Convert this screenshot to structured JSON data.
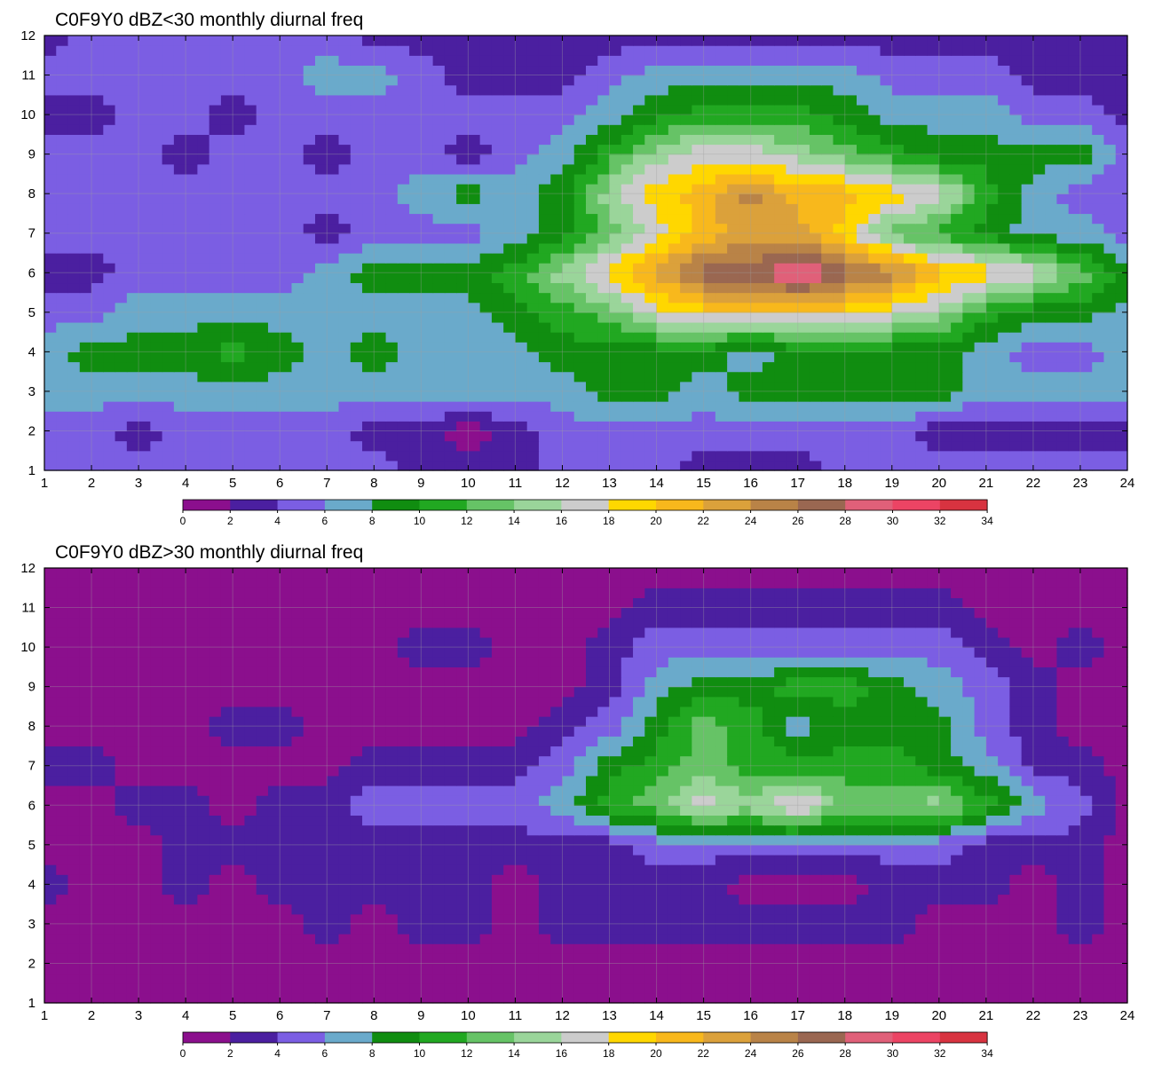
{
  "chart_data": [
    {
      "type": "heatmap",
      "title": "C0F9Y0 dBZ<30 monthly diurnal freq",
      "xlabel": "",
      "ylabel": "",
      "xlim": [
        1,
        24
      ],
      "ylim": [
        1,
        12
      ],
      "x_ticks": [
        1,
        2,
        3,
        4,
        5,
        6,
        7,
        8,
        9,
        10,
        11,
        12,
        13,
        14,
        15,
        16,
        17,
        18,
        19,
        20,
        21,
        22,
        23,
        24
      ],
      "y_ticks": [
        1,
        2,
        3,
        4,
        5,
        6,
        7,
        8,
        9,
        10,
        11,
        12
      ],
      "grid": true,
      "contour_levels": [
        0,
        2,
        4,
        6,
        8,
        10,
        12,
        14,
        16,
        18,
        20,
        22,
        24,
        26,
        28,
        30,
        32,
        34
      ],
      "x": [
        1,
        2,
        3,
        4,
        5,
        6,
        7,
        8,
        9,
        10,
        11,
        12,
        13,
        14,
        15,
        16,
        17,
        18,
        19,
        20,
        21,
        22,
        23,
        24
      ],
      "y": [
        1,
        2,
        3,
        4,
        5,
        6,
        7,
        8,
        9,
        10,
        11,
        12
      ],
      "z": [
        [
          5,
          5,
          5,
          5,
          5,
          5,
          5,
          5,
          3,
          3,
          3,
          5,
          5,
          5,
          3,
          3,
          3,
          5,
          5,
          5,
          5,
          5,
          5,
          5
        ],
        [
          5,
          5,
          3,
          5,
          5,
          5,
          5,
          3,
          3,
          1,
          3,
          5,
          5,
          5,
          5,
          5,
          5,
          5,
          5,
          3,
          3,
          3,
          3,
          3
        ],
        [
          7,
          7,
          7,
          7,
          7,
          7,
          7,
          7,
          7,
          7,
          7,
          7,
          9,
          9,
          7,
          9,
          9,
          9,
          9,
          9,
          7,
          7,
          7,
          7
        ],
        [
          7,
          9,
          9,
          9,
          11,
          9,
          7,
          9,
          7,
          7,
          7,
          9,
          9,
          9,
          9,
          7,
          9,
          9,
          9,
          9,
          7,
          5,
          5,
          7
        ],
        [
          5,
          5,
          7,
          7,
          7,
          7,
          7,
          7,
          7,
          7,
          9,
          11,
          13,
          17,
          19,
          19,
          19,
          19,
          17,
          15,
          11,
          9,
          9,
          7
        ],
        [
          3,
          3,
          5,
          5,
          5,
          5,
          7,
          9,
          9,
          9,
          11,
          15,
          19,
          23,
          27,
          27,
          31,
          27,
          25,
          21,
          19,
          17,
          13,
          9
        ],
        [
          5,
          5,
          5,
          5,
          5,
          5,
          3,
          5,
          5,
          5,
          7,
          9,
          13,
          17,
          21,
          23,
          23,
          19,
          13,
          11,
          9,
          7,
          7,
          5
        ],
        [
          5,
          5,
          5,
          5,
          5,
          5,
          5,
          5,
          7,
          9,
          7,
          9,
          15,
          19,
          21,
          25,
          21,
          21,
          19,
          17,
          11,
          7,
          5,
          5
        ],
        [
          5,
          5,
          5,
          3,
          5,
          5,
          3,
          5,
          5,
          3,
          5,
          7,
          11,
          15,
          17,
          17,
          15,
          13,
          11,
          9,
          9,
          9,
          9,
          5
        ],
        [
          3,
          3,
          5,
          5,
          3,
          5,
          5,
          5,
          5,
          5,
          5,
          5,
          7,
          9,
          11,
          11,
          11,
          9,
          7,
          7,
          7,
          5,
          5,
          3
        ],
        [
          5,
          5,
          5,
          5,
          5,
          5,
          7,
          7,
          5,
          3,
          3,
          3,
          5,
          7,
          7,
          7,
          7,
          7,
          5,
          5,
          5,
          3,
          3,
          3
        ],
        [
          3,
          5,
          5,
          5,
          5,
          5,
          5,
          3,
          3,
          3,
          3,
          3,
          3,
          3,
          3,
          3,
          3,
          3,
          3,
          3,
          3,
          3,
          3,
          3
        ]
      ]
    },
    {
      "type": "heatmap",
      "title": "C0F9Y0 dBZ>30 monthly diurnal freq",
      "xlabel": "",
      "ylabel": "",
      "xlim": [
        1,
        24
      ],
      "ylim": [
        1,
        12
      ],
      "x_ticks": [
        1,
        2,
        3,
        4,
        5,
        6,
        7,
        8,
        9,
        10,
        11,
        12,
        13,
        14,
        15,
        16,
        17,
        18,
        19,
        20,
        21,
        22,
        23,
        24
      ],
      "y_ticks": [
        1,
        2,
        3,
        4,
        5,
        6,
        7,
        8,
        9,
        10,
        11,
        12
      ],
      "grid": true,
      "contour_levels": [
        0,
        2,
        4,
        6,
        8,
        10,
        12,
        14,
        16,
        18,
        20,
        22,
        24,
        26,
        28,
        30,
        32,
        34
      ],
      "x": [
        1,
        2,
        3,
        4,
        5,
        6,
        7,
        8,
        9,
        10,
        11,
        12,
        13,
        14,
        15,
        16,
        17,
        18,
        19,
        20,
        21,
        22,
        23,
        24
      ],
      "y": [
        1,
        2,
        3,
        4,
        5,
        6,
        7,
        8,
        9,
        10,
        11,
        12
      ],
      "z": [
        [
          1,
          1,
          1,
          1,
          1,
          1,
          1,
          1,
          1,
          1,
          1,
          1,
          1,
          1,
          1,
          1,
          1,
          1,
          1,
          1,
          1,
          1,
          1,
          1
        ],
        [
          1,
          1,
          1,
          1,
          1,
          1,
          1,
          1,
          1,
          1,
          1,
          1,
          1,
          1,
          1,
          1,
          1,
          1,
          1,
          1,
          1,
          1,
          1,
          1
        ],
        [
          1,
          1,
          1,
          1,
          1,
          1,
          3,
          1,
          3,
          3,
          1,
          3,
          3,
          3,
          3,
          3,
          3,
          3,
          3,
          1,
          1,
          1,
          3,
          1
        ],
        [
          3,
          1,
          1,
          3,
          1,
          3,
          3,
          3,
          3,
          3,
          1,
          3,
          3,
          3,
          3,
          1,
          1,
          1,
          3,
          3,
          3,
          1,
          3,
          1
        ],
        [
          1,
          1,
          1,
          3,
          3,
          3,
          3,
          3,
          3,
          3,
          3,
          3,
          3,
          5,
          5,
          5,
          5,
          5,
          5,
          5,
          3,
          3,
          3,
          1
        ],
        [
          1,
          1,
          3,
          3,
          1,
          3,
          3,
          5,
          5,
          5,
          5,
          7,
          11,
          13,
          17,
          15,
          19,
          13,
          13,
          15,
          11,
          7,
          5,
          1
        ],
        [
          3,
          3,
          1,
          1,
          1,
          1,
          1,
          3,
          3,
          3,
          3,
          5,
          9,
          11,
          13,
          11,
          11,
          11,
          11,
          9,
          7,
          3,
          3,
          1
        ],
        [
          1,
          1,
          1,
          1,
          3,
          3,
          1,
          1,
          1,
          1,
          1,
          3,
          5,
          9,
          13,
          11,
          7,
          9,
          9,
          9,
          5,
          3,
          1,
          1
        ],
        [
          1,
          1,
          1,
          1,
          1,
          1,
          1,
          1,
          1,
          1,
          1,
          1,
          3,
          7,
          9,
          9,
          11,
          11,
          9,
          7,
          5,
          3,
          1,
          1
        ],
        [
          1,
          1,
          1,
          1,
          1,
          1,
          1,
          1,
          3,
          3,
          1,
          1,
          3,
          5,
          5,
          5,
          5,
          5,
          5,
          5,
          3,
          1,
          3,
          1
        ],
        [
          1,
          1,
          1,
          1,
          1,
          1,
          1,
          1,
          1,
          1,
          1,
          1,
          1,
          3,
          3,
          3,
          3,
          3,
          3,
          3,
          1,
          1,
          1,
          1
        ],
        [
          1,
          1,
          1,
          1,
          1,
          1,
          1,
          1,
          1,
          1,
          1,
          1,
          1,
          1,
          1,
          1,
          1,
          1,
          1,
          1,
          1,
          1,
          1,
          1
        ]
      ]
    }
  ],
  "colorbar": {
    "labels": [
      "0",
      "2",
      "4",
      "6",
      "8",
      "10",
      "12",
      "14",
      "16",
      "18",
      "20",
      "22",
      "24",
      "26",
      "28",
      "30",
      "32",
      "34"
    ],
    "colors": [
      "#8b0f8d",
      "#4b1fa0",
      "#7b5ee3",
      "#6aaacb",
      "#108d10",
      "#21a821",
      "#66c366",
      "#9ad59a",
      "#cccccc",
      "#ffd700",
      "#f8b81c",
      "#dba13b",
      "#b98347",
      "#9a6751",
      "#e06079",
      "#ec4464",
      "#d83340"
    ]
  },
  "contour_line_color": "#f0a030"
}
